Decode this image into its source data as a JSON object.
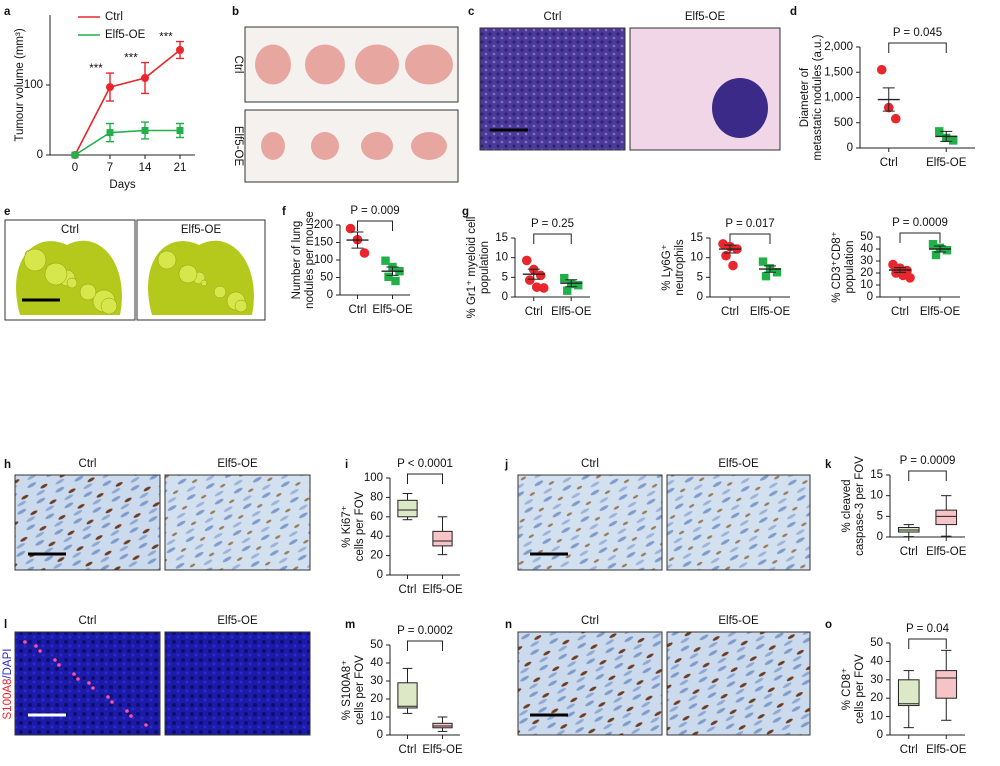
{
  "chart_data": [
    {
      "type": "line",
      "panel": "a",
      "ylabel": [
        "Tumour volume (mm³)"
      ],
      "xlabel": "Days",
      "x": [
        0,
        7,
        14,
        21
      ],
      "xlim": [
        -5,
        24
      ],
      "xticks": [
        0,
        7,
        14,
        21
      ],
      "ylim": [
        0,
        200
      ],
      "yticks": [
        0,
        100
      ],
      "series": [
        {
          "name": "Ctrl",
          "color": "#e8262b",
          "values": [
            0,
            97,
            110,
            150
          ],
          "errors": [
            0,
            20,
            22,
            12
          ]
        },
        {
          "name": "Elf5-OE",
          "color": "#22b04b",
          "values": [
            0,
            32,
            35,
            35
          ],
          "errors": [
            0,
            13,
            12,
            10
          ]
        }
      ],
      "annotations": [
        {
          "x": 7,
          "text": "***"
        },
        {
          "x": 14,
          "text": "***"
        },
        {
          "x": 21,
          "text": "***"
        }
      ]
    },
    {
      "type": "dot",
      "panel": "d",
      "ylabel": [
        "Diameter of",
        "metastatic nodules (a.u.)"
      ],
      "categories": [
        "Ctrl",
        "Elf5-OE"
      ],
      "ylim": [
        0,
        2000
      ],
      "yticks": [
        0,
        500,
        {
          "value": 1000,
          "label": "1,000"
        },
        {
          "value": 1500,
          "label": "1,500"
        },
        {
          "value": 2000,
          "label": "2,000"
        }
      ],
      "p_label": "P = 0.045",
      "series": [
        {
          "color": "#e8262b",
          "marker": "circle",
          "points": [
            1550,
            800,
            580
          ],
          "mean": 960,
          "sem": 230
        },
        {
          "color": "#22b04b",
          "marker": "square",
          "points": [
            330,
            200,
            150
          ],
          "mean": 230,
          "sem": 100
        }
      ]
    },
    {
      "type": "dot",
      "panel": "f",
      "ylabel": [
        "Number of lung",
        "nodules per mouse"
      ],
      "categories": [
        "Ctrl",
        "Elf5-OE"
      ],
      "ylim": [
        0,
        200
      ],
      "yticks": [
        0,
        50,
        100,
        150,
        200
      ],
      "p_label": "P = 0.009",
      "series": [
        {
          "color": "#e8262b",
          "marker": "circle",
          "points": [
            190,
            158,
            120
          ],
          "mean": 157,
          "sem": 23
        },
        {
          "color": "#22b04b",
          "marker": "square",
          "points": [
            98,
            80,
            68,
            52,
            40
          ],
          "mean": 68,
          "sem": 12
        }
      ]
    },
    {
      "type": "dot",
      "panel": "g",
      "ylabel": [
        "% Gr1⁺ myeloid cell",
        "population"
      ],
      "categories": [
        "Ctrl",
        "Elf5-OE"
      ],
      "ylim": [
        0,
        15
      ],
      "yticks": [
        0,
        5,
        10,
        15
      ],
      "p_label": "P = 0.25",
      "series": [
        {
          "color": "#e8262b",
          "marker": "circle",
          "points": [
            9.3,
            7,
            5.5,
            4.3,
            2.5,
            2.3
          ],
          "mean": 5.8,
          "sem": 1.3
        },
        {
          "color": "#22b04b",
          "marker": "square",
          "points": [
            4.8,
            3.3,
            3,
            1.6
          ],
          "mean": 3.5,
          "sem": 0.9
        }
      ]
    },
    {
      "type": "dot",
      "ylabel": [
        "% Ly6G⁺",
        "neutrophils"
      ],
      "categories": [
        "Ctrl",
        "Elf5-OE"
      ],
      "ylim": [
        0,
        15
      ],
      "yticks": [
        0,
        5,
        10,
        15
      ],
      "p_label": "P = 0.017",
      "series": [
        {
          "color": "#e8262b",
          "marker": "circle",
          "points": [
            13.5,
            12.8,
            12.2,
            10.5,
            8
          ],
          "mean": 12.2,
          "sem": 1
        },
        {
          "color": "#22b04b",
          "marker": "square",
          "points": [
            9,
            7.3,
            6.3,
            5.3
          ],
          "mean": 7.1,
          "sem": 0.8
        }
      ]
    },
    {
      "type": "dot",
      "ylabel": [
        "% CD3⁺CD8⁺",
        "population"
      ],
      "categories": [
        "Ctrl",
        "Elf5-OE"
      ],
      "ylim": [
        0,
        50
      ],
      "yticks": [
        0,
        10,
        20,
        30,
        40,
        50
      ],
      "p_label": "P = 0.0009",
      "series": [
        {
          "color": "#e8262b",
          "marker": "circle",
          "points": [
            27,
            24,
            22,
            20,
            18,
            16
          ],
          "mean": 22.5,
          "sem": 2
        },
        {
          "color": "#22b04b",
          "marker": "square",
          "points": [
            44,
            41,
            39,
            35
          ],
          "mean": 40,
          "sem": 2.5
        }
      ]
    },
    {
      "type": "box",
      "panel": "i",
      "ylabel": [
        "% Ki67⁺",
        "cells per FOV"
      ],
      "categories": [
        "Ctrl",
        "Elf5-OE"
      ],
      "ylim": [
        0,
        100
      ],
      "yticks": [
        0,
        20,
        40,
        60,
        80,
        100
      ],
      "p_label": "P < 0.0001",
      "series": [
        {
          "color": "#dce8c6",
          "min": 57,
          "q1": 60,
          "median": 67,
          "q3": 77,
          "max": 84
        },
        {
          "color": "#f6c3c6",
          "min": 21,
          "q1": 30,
          "median": 35,
          "q3": 45,
          "max": 60
        }
      ]
    },
    {
      "type": "box",
      "panel": "k",
      "ylabel": [
        "% cleaved",
        "caspase-3 per FOV"
      ],
      "categories": [
        "Ctrl",
        "Elf5-OE"
      ],
      "ylim": [
        0,
        15
      ],
      "yticks": [
        0,
        5,
        10,
        15
      ],
      "p_label": "P = 0.0009",
      "series": [
        {
          "color": "#dce8c6",
          "min": 0.1,
          "q1": 1.2,
          "median": 1.7,
          "q3": 2.3,
          "max": 3
        },
        {
          "color": "#f6c3c6",
          "min": 0.2,
          "q1": 3,
          "median": 5,
          "q3": 6.5,
          "max": 10
        }
      ]
    },
    {
      "type": "box",
      "panel": "m",
      "ylabel": [
        "% S100A8⁺",
        "cells per FOV"
      ],
      "categories": [
        "Ctrl",
        "Elf5-OE"
      ],
      "ylim": [
        0,
        50
      ],
      "yticks": [
        0,
        10,
        20,
        30,
        40,
        50
      ],
      "p_label": "P = 0.0002",
      "series": [
        {
          "color": "#dce8c6",
          "min": 12,
          "q1": 15,
          "median": 16,
          "q3": 29,
          "max": 37
        },
        {
          "color": "#f6c3c6",
          "min": 2,
          "q1": 4,
          "median": 5,
          "q3": 6.5,
          "max": 10
        }
      ]
    },
    {
      "type": "box",
      "panel": "o",
      "ylabel": [
        "% CD8⁺",
        "cells per FOV"
      ],
      "categories": [
        "Ctrl",
        "Elf5-OE"
      ],
      "ylim": [
        0,
        50
      ],
      "yticks": [
        0,
        10,
        20,
        30,
        40,
        50
      ],
      "p_label": "P = 0.04",
      "series": [
        {
          "color": "#dce8c6",
          "min": 4,
          "q1": 16,
          "median": 17,
          "q3": 30,
          "max": 35
        },
        {
          "color": "#f6c3c6",
          "min": 8,
          "q1": 20,
          "median": 31,
          "q3": 35,
          "max": 46
        }
      ]
    }
  ],
  "images": [
    {
      "panel": "b",
      "labels": [
        "Ctrl",
        "Elf5-OE"
      ]
    },
    {
      "panel": "c",
      "labels": [
        "Ctrl",
        "Elf5-OE"
      ]
    },
    {
      "panel": "e",
      "labels": [
        "Ctrl",
        "Elf5-OE"
      ]
    },
    {
      "panel": "h",
      "labels": [
        "Ctrl",
        "Elf5-OE"
      ]
    },
    {
      "panel": "j",
      "labels": [
        "Ctrl",
        "Elf5-OE"
      ]
    },
    {
      "panel": "l",
      "labels": [
        "Ctrl",
        "Elf5-OE"
      ],
      "stain": [
        "S100A8",
        "/DAPI"
      ]
    },
    {
      "panel": "n",
      "labels": [
        "Ctrl",
        "Elf5-OE"
      ]
    }
  ]
}
